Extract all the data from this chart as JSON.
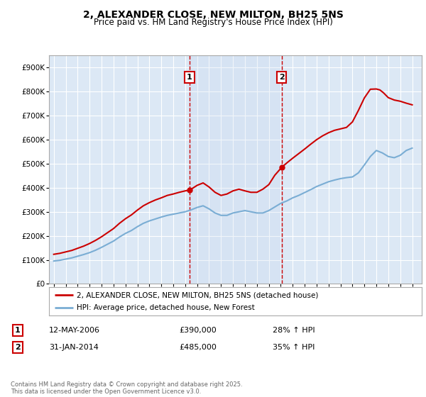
{
  "title": "2, ALEXANDER CLOSE, NEW MILTON, BH25 5NS",
  "subtitle": "Price paid vs. HM Land Registry's House Price Index (HPI)",
  "legend_line1": "2, ALEXANDER CLOSE, NEW MILTON, BH25 5NS (detached house)",
  "legend_line2": "HPI: Average price, detached house, New Forest",
  "footnote": "Contains HM Land Registry data © Crown copyright and database right 2025.\nThis data is licensed under the Open Government Licence v3.0.",
  "sale1_label": "1",
  "sale1_date": "12-MAY-2006",
  "sale1_price": "£390,000",
  "sale1_hpi": "28% ↑ HPI",
  "sale2_label": "2",
  "sale2_date": "31-JAN-2014",
  "sale2_price": "£485,000",
  "sale2_hpi": "35% ↑ HPI",
  "ylim": [
    0,
    950000
  ],
  "xlim": [
    1994.6,
    2025.8
  ],
  "background_color": "#ffffff",
  "plot_bg_color": "#dce8f5",
  "red_color": "#cc0000",
  "blue_color": "#7aadd4",
  "grid_color": "#ffffff",
  "vline_color": "#cc0000",
  "vline_x1": 2006.36,
  "vline_x2": 2014.08,
  "sale1_x": 2006.36,
  "sale1_y": 390000,
  "sale2_x": 2014.08,
  "sale2_y": 485000
}
